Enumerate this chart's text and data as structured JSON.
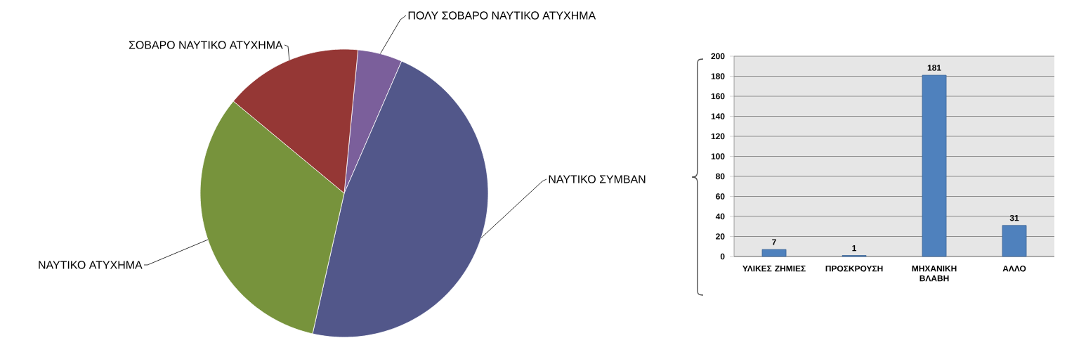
{
  "chart_data": [
    {
      "type": "pie",
      "categories": [
        "ΠΟΛΥ ΣΟΒΑΡΟ ΝΑΥΤΙΚΟ ΑΤΥΧΗΜΑ",
        "ΝΑΥΤΙΚΟ ΣΥΜΒΑΝ",
        "ΝΑΥΤΙΚΟ ΑΤΥΧΗΜΑ",
        "ΣΟΒΑΡΟ ΝΑΥΤΙΚΟ ΑΤΥΧΗΜΑ"
      ],
      "values": [
        5,
        47,
        32.5,
        15.5
      ],
      "colors": [
        "#7b5f9b",
        "#52578a",
        "#77933c",
        "#953735"
      ]
    },
    {
      "type": "bar",
      "categories": [
        "ΥΛΙΚΕΣ ΖΗΜΙΕΣ",
        "ΠΡΟΣΚΡΟΥΣΗ",
        "ΜΗΧΑΝΙΚΗ ΒΛΑΒΗ",
        "ΑΛΛΟ"
      ],
      "values": [
        7,
        1,
        181,
        31
      ],
      "color": "#4f81bd",
      "ylim": [
        0,
        200
      ],
      "yticks": [
        0,
        20,
        40,
        60,
        80,
        100,
        120,
        140,
        160,
        180,
        200
      ],
      "grid": "y",
      "data_labels": true
    }
  ]
}
